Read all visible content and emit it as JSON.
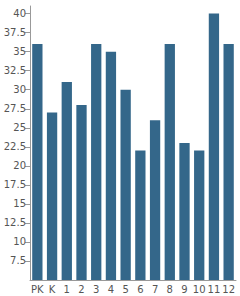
{
  "chart_data": {
    "type": "bar",
    "categories": [
      "PK",
      "K",
      "1",
      "2",
      "3",
      "4",
      "5",
      "6",
      "7",
      "8",
      "9",
      "10",
      "11",
      "12"
    ],
    "values": [
      36,
      27,
      31,
      28,
      36,
      35,
      30,
      22,
      26,
      36,
      23,
      22,
      40,
      36
    ],
    "color": "#34678a",
    "ylim": [
      5,
      41
    ],
    "yticks": [
      7.5,
      10,
      12.5,
      15,
      17.5,
      20,
      22.5,
      25,
      27.5,
      30,
      32.5,
      35,
      37.5,
      40
    ],
    "grid": false
  }
}
